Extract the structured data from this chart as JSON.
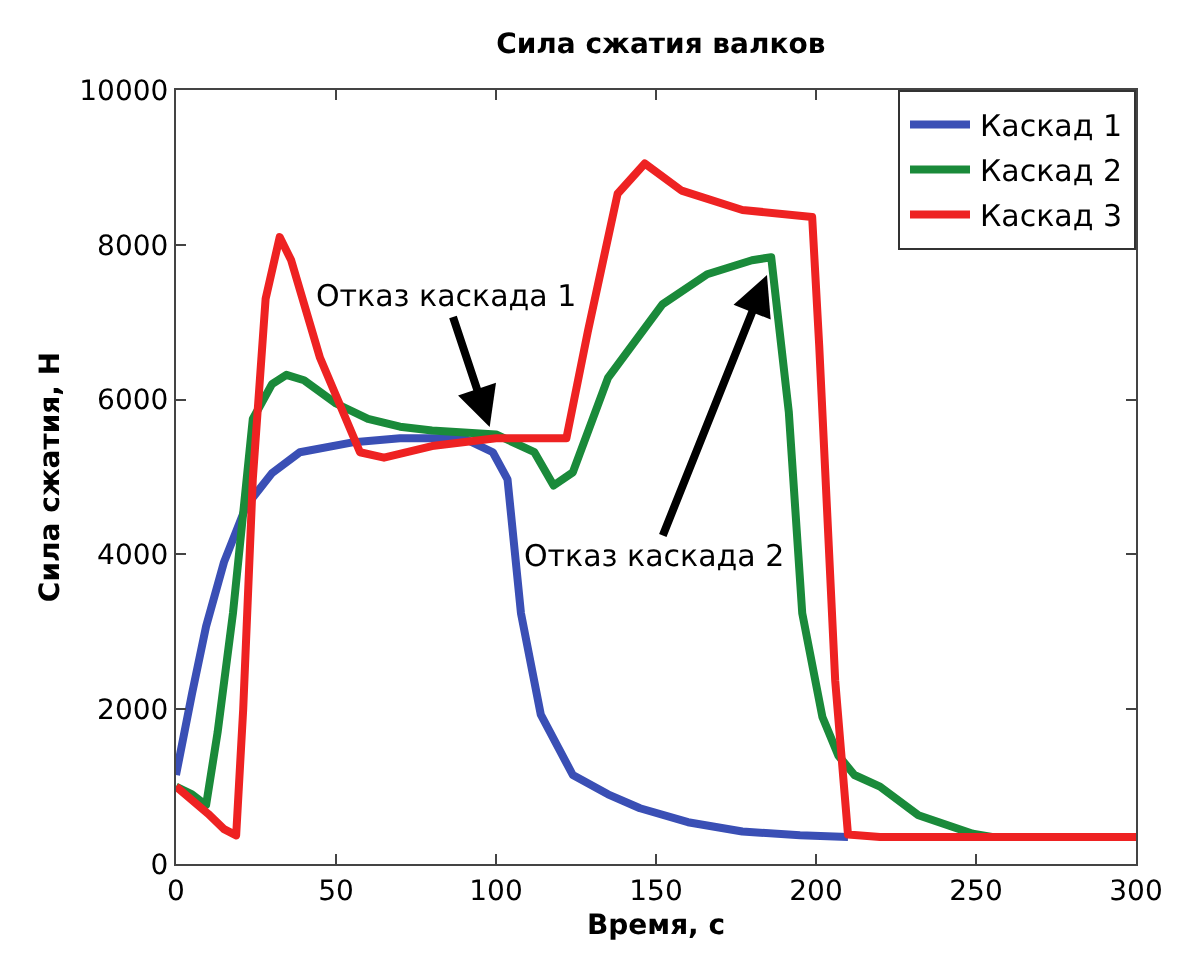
{
  "chart_data": {
    "type": "line",
    "title": "Сила сжатия валков",
    "xlabel": "Время, с",
    "ylabel": "Сила сжатия, Н",
    "xlim": [
      0,
      300
    ],
    "xticks": [
      0,
      50,
      100,
      150,
      200,
      250,
      300
    ],
    "ylim": [
      0,
      10000
    ],
    "yticks": [
      0,
      2000,
      4000,
      6000,
      8000,
      10000
    ],
    "grid": false,
    "legend": "top right",
    "line_style": "solid",
    "marker": "none",
    "annotations": [
      {
        "text": "Отказ каскада 1",
        "x": 100,
        "y": 5400
      },
      {
        "text": "Отказ каскада 2",
        "x": 187,
        "y": 7850
      }
    ],
    "series": [
      {
        "name": "Каскад 1",
        "color": "#3a4fb5",
        "x": [
          0,
          5,
          9.4,
          15,
          22,
          30,
          38.7,
          55.6,
          70,
          90,
          99,
          103.6,
          107.8,
          114,
          124,
          135,
          145,
          160,
          177,
          195,
          210
        ],
        "values": [
          1150,
          2200,
          3070,
          3900,
          4630,
          5050,
          5320,
          5450,
          5500,
          5500,
          5320,
          4970,
          3240,
          1930,
          1150,
          900,
          720,
          540,
          420,
          370,
          350
        ]
      },
      {
        "name": "Каскад 2",
        "color": "#1a8a3a",
        "x": [
          0,
          5,
          9.4,
          13,
          17.8,
          24,
          30,
          34.5,
          40,
          50,
          60,
          70,
          80,
          100,
          112,
          118,
          124,
          135,
          152,
          166,
          180,
          186,
          191.5,
          195.7,
          202,
          207,
          212,
          220,
          232,
          249,
          255
        ],
        "values": [
          1000,
          900,
          760,
          1700,
          3240,
          5750,
          6200,
          6320,
          6250,
          5950,
          5750,
          5650,
          5600,
          5550,
          5320,
          4890,
          5060,
          6280,
          7230,
          7620,
          7800,
          7840,
          5840,
          3240,
          1900,
          1400,
          1150,
          1000,
          630,
          390,
          350
        ]
      },
      {
        "name": "Каскад 3",
        "color": "#ee2222",
        "x": [
          0,
          10,
          15,
          18.8,
          21,
          24,
          28,
          32.4,
          36,
          45,
          57.5,
          65,
          80,
          100,
          122,
          128.7,
          138,
          146.5,
          158,
          177,
          198.8,
          201,
          206,
          210,
          220,
          300
        ],
        "values": [
          1000,
          650,
          450,
          370,
          2000,
          4970,
          7300,
          8100,
          7800,
          6540,
          5320,
          5250,
          5400,
          5500,
          5500,
          6880,
          8660,
          9050,
          8700,
          8450,
          8360,
          6700,
          2370,
          380,
          350,
          350
        ]
      }
    ]
  }
}
